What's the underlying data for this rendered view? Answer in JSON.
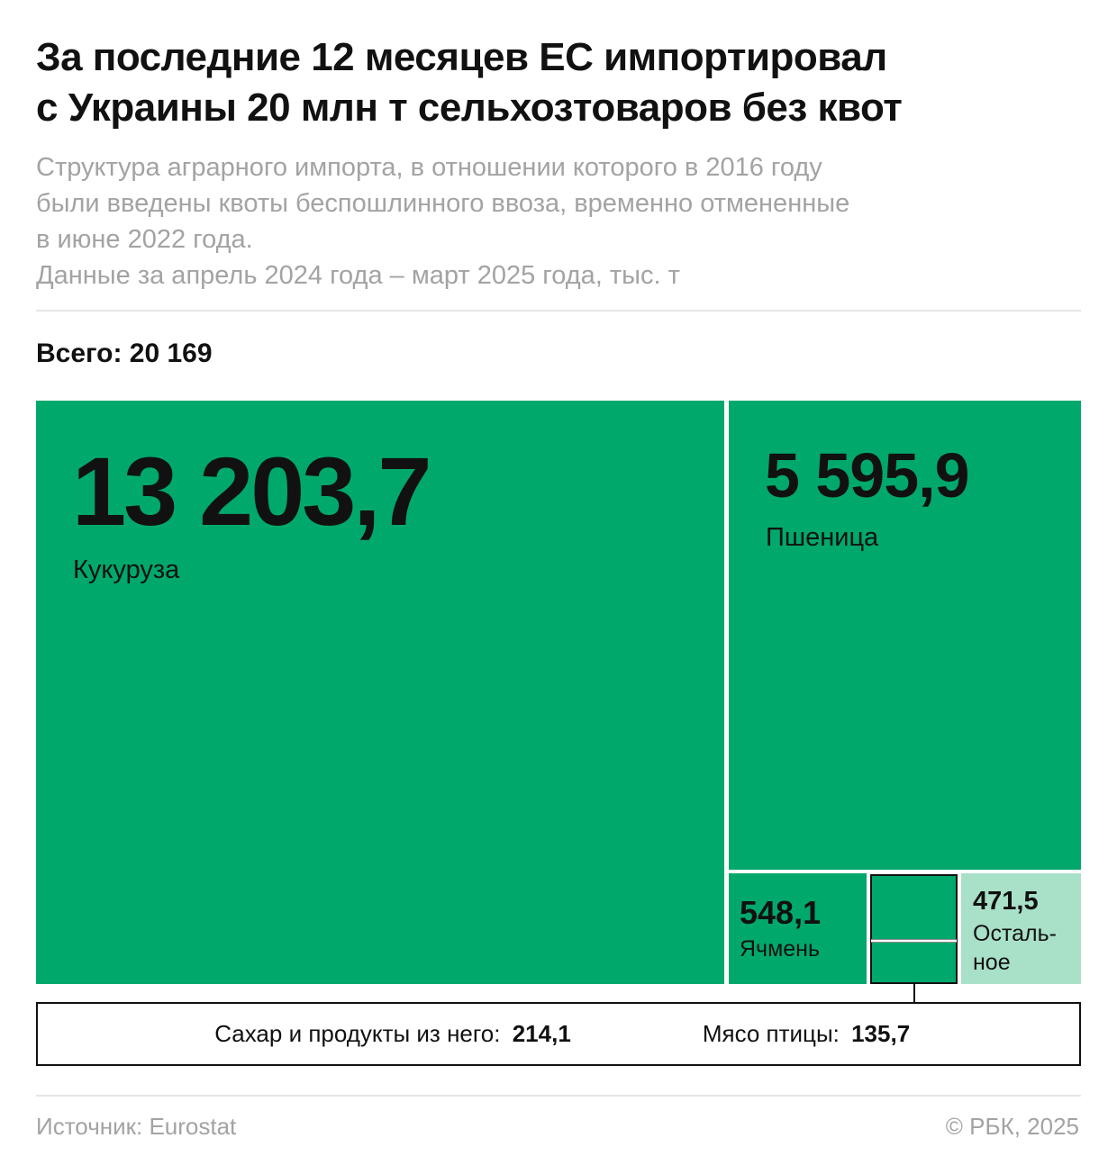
{
  "title_line1": "За последние 12 месяцев ЕС импортировал",
  "title_line2": "с Украины 20 млн т сельхозтоваров без квот",
  "subtitle_lines": [
    "Структура аграрного импорта, в отношении которого в 2016 году",
    "были введены квоты беспошлинного ввоза, временно отмененные",
    "в июне 2022 года.",
    "Данные за апрель 2024 года – март 2025 года, тыс. т"
  ],
  "total_label": "Всего: 20 169",
  "source": "Источник: Eurostat",
  "copyright": "© РБК, 2025",
  "colors": {
    "main": "#00a86b",
    "other": "#a8e0c8",
    "border": "#111111",
    "subtitle": "#a3a3a3"
  },
  "chart_data": {
    "type": "treemap",
    "total": 20169,
    "unit": "тыс. т",
    "items": [
      {
        "label": "Кукуруза",
        "value_text": "13 203,7",
        "value": 13203.7
      },
      {
        "label": "Пшеница",
        "value_text": "5 595,9",
        "value": 5595.9
      },
      {
        "label": "Ячмень",
        "value_text": "548,1",
        "value": 548.1
      },
      {
        "label": "Сахар и продукты из него:",
        "value_text": "214,1",
        "value": 214.1
      },
      {
        "label": "Мясо птицы:",
        "value_text": "135,7",
        "value": 135.7
      },
      {
        "label_line1": "Осталь-",
        "label_line2": "ное",
        "value_text": "471,5",
        "value": 471.5
      }
    ]
  }
}
